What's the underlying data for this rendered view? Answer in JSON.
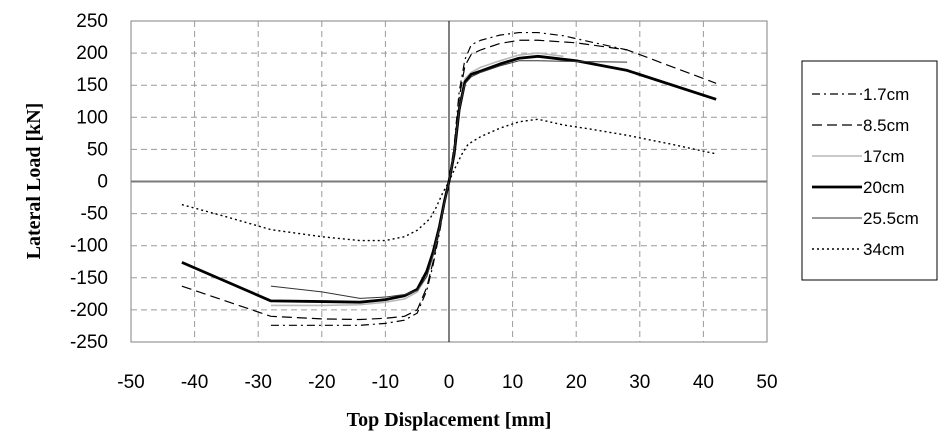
{
  "chart_data": {
    "type": "line",
    "title": "",
    "xlabel": "Top Displacement [mm]",
    "ylabel": "Lateral Load [kN]",
    "xlim": [
      -50,
      50
    ],
    "ylim": [
      -250,
      250
    ],
    "xticks": [
      -50,
      -40,
      -30,
      -20,
      -10,
      0,
      10,
      20,
      30,
      40,
      50
    ],
    "yticks": [
      250,
      200,
      150,
      100,
      50,
      0,
      -50,
      -100,
      -150,
      -200,
      -250
    ],
    "grid": true,
    "legend_position": "right",
    "series": [
      {
        "name": "1.7cm",
        "style": "dash-dot",
        "color": "#000000",
        "x": [
          -28,
          -20,
          -14,
          -10,
          -7,
          -5,
          -3.5,
          -2.5,
          -1.5,
          -0.7,
          0,
          0.8,
          1.6,
          2.5,
          3.5,
          5,
          8,
          11,
          14,
          18,
          22,
          28
        ],
        "y": [
          -224,
          -224,
          -224,
          -221,
          -216,
          -205,
          -170,
          -130,
          -80,
          -35,
          0,
          55,
          140,
          190,
          213,
          220,
          228,
          232,
          232,
          227,
          218,
          205
        ]
      },
      {
        "name": "8.5cm",
        "style": "dashed",
        "color": "#000000",
        "x": [
          -42,
          -28,
          -20,
          -14,
          -10,
          -7,
          -5,
          -3.5,
          -2.5,
          -1.5,
          -0.7,
          0,
          0.8,
          1.6,
          2.5,
          3.5,
          5,
          8,
          11,
          14,
          20,
          28,
          42
        ],
        "y": [
          -163,
          -210,
          -214,
          -215,
          -213,
          -210,
          -200,
          -165,
          -125,
          -75,
          -30,
          0,
          50,
          130,
          180,
          198,
          205,
          215,
          220,
          220,
          216,
          205,
          153
        ]
      },
      {
        "name": "17cm",
        "style": "solid",
        "color": "#b8b8b8",
        "x": [
          -28,
          -20,
          -14,
          -10,
          -7,
          -5,
          -3.5,
          -2.5,
          -1.5,
          -0.7,
          0,
          0.8,
          1.6,
          2.5,
          3.5,
          5,
          8,
          11,
          14,
          18
        ],
        "y": [
          -193,
          -193,
          -192,
          -188,
          -183,
          -172,
          -148,
          -115,
          -70,
          -30,
          0,
          45,
          118,
          160,
          170,
          178,
          188,
          197,
          200,
          195
        ]
      },
      {
        "name": "20cm",
        "style": "solid-bold",
        "color": "#000000",
        "x": [
          -42,
          -28,
          -20,
          -14,
          -10,
          -7,
          -5,
          -3.5,
          -2.5,
          -1.5,
          -0.7,
          0,
          0.8,
          1.6,
          2.5,
          3.5,
          5,
          8,
          11,
          14,
          20,
          28,
          42
        ],
        "y": [
          -126,
          -186,
          -187,
          -188,
          -184,
          -178,
          -168,
          -140,
          -110,
          -70,
          -30,
          0,
          42,
          112,
          155,
          167,
          172,
          183,
          192,
          195,
          188,
          173,
          128
        ]
      },
      {
        "name": "25.5cm",
        "style": "solid-thin",
        "color": "#333333",
        "x": [
          -28,
          -20,
          -14,
          -10,
          -7,
          -5,
          -3.5,
          -2.5,
          -1.5,
          -0.7,
          0,
          0.8,
          1.6,
          2.5,
          3.5,
          5,
          8,
          11,
          14,
          20,
          28
        ],
        "y": [
          -163,
          -172,
          -182,
          -180,
          -176,
          -170,
          -148,
          -115,
          -72,
          -32,
          0,
          45,
          112,
          152,
          163,
          170,
          180,
          188,
          188,
          187,
          186
        ]
      },
      {
        "name": "34cm",
        "style": "dotted",
        "color": "#000000",
        "x": [
          -42,
          -35,
          -28,
          -20,
          -14,
          -10,
          -7,
          -5,
          -3,
          -2,
          -1,
          0,
          1,
          2,
          3,
          5,
          8,
          11,
          14,
          18,
          22,
          28,
          35,
          42
        ],
        "y": [
          -36,
          -55,
          -75,
          -86,
          -92,
          -92,
          -86,
          -76,
          -58,
          -40,
          -18,
          0,
          22,
          42,
          58,
          70,
          83,
          93,
          97,
          88,
          82,
          72,
          58,
          43
        ]
      }
    ]
  }
}
